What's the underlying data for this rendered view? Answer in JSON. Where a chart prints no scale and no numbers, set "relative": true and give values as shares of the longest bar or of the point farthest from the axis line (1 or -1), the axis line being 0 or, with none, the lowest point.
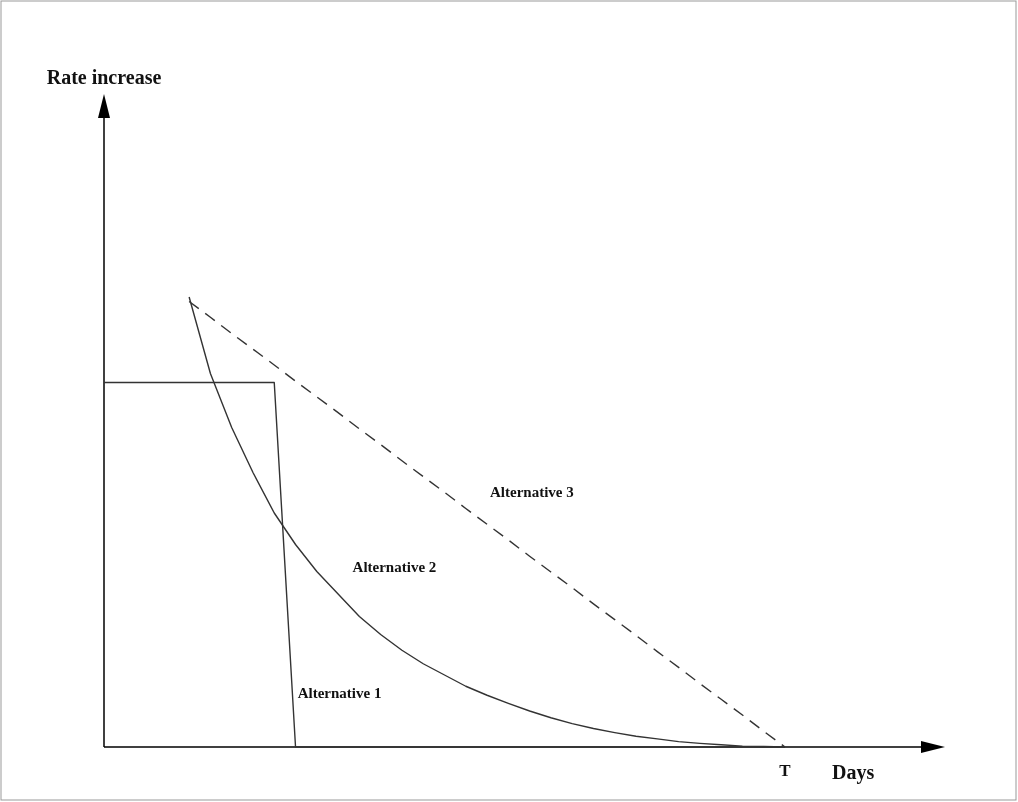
{
  "chart_data": {
    "type": "line",
    "relative": true,
    "xlabel": "Days",
    "categories": [
      null,
      null,
      null,
      null,
      null,
      null,
      null,
      null,
      null,
      null,
      null,
      null,
      null,
      null,
      null,
      null,
      null,
      null,
      null,
      null,
      null,
      null,
      null,
      null,
      null,
      null,
      null,
      null,
      null,
      null,
      null,
      null,
      null
    ],
    "annotations": [
      "T",
      "Rate increase"
    ],
    "series": [
      {
        "name": "Alternative 1",
        "color": "#333333",
        "line_style": "solid",
        "values": [
          0.81,
          0.81,
          0.81,
          0.81,
          0.81,
          0.81,
          0.81,
          0.81,
          0.81,
          0,
          0,
          0,
          0,
          0,
          0,
          0,
          0,
          0,
          0,
          0,
          0,
          0,
          0,
          0,
          0,
          0,
          0,
          0,
          0,
          0,
          0,
          0,
          0
        ]
      },
      {
        "name": "Alternative 2",
        "color": "#333333",
        "line_style": "solid",
        "values": [
          null,
          null,
          null,
          null,
          1,
          0.83,
          0.71,
          0.61,
          0.52,
          0.45,
          0.39,
          0.34,
          0.29,
          0.25,
          0.215,
          0.185,
          0.16,
          0.135,
          0.115,
          0.097,
          0.08,
          0.065,
          0.052,
          0.041,
          0.032,
          0.024,
          0.018,
          0.012,
          0.008,
          0.005,
          0.002,
          0.001,
          0
        ]
      },
      {
        "name": "Alternative 3",
        "color": "#333333",
        "line_style": "dashed",
        "values": [
          null,
          null,
          null,
          null,
          0.99,
          0.955,
          0.919,
          0.884,
          0.849,
          0.813,
          0.778,
          0.743,
          0.707,
          0.672,
          0.636,
          0.601,
          0.566,
          0.53,
          0.495,
          0.46,
          0.424,
          0.389,
          0.354,
          0.318,
          0.283,
          0.248,
          0.212,
          0.177,
          0.141,
          0.106,
          0.071,
          0.035,
          0
        ]
      }
    ]
  }
}
